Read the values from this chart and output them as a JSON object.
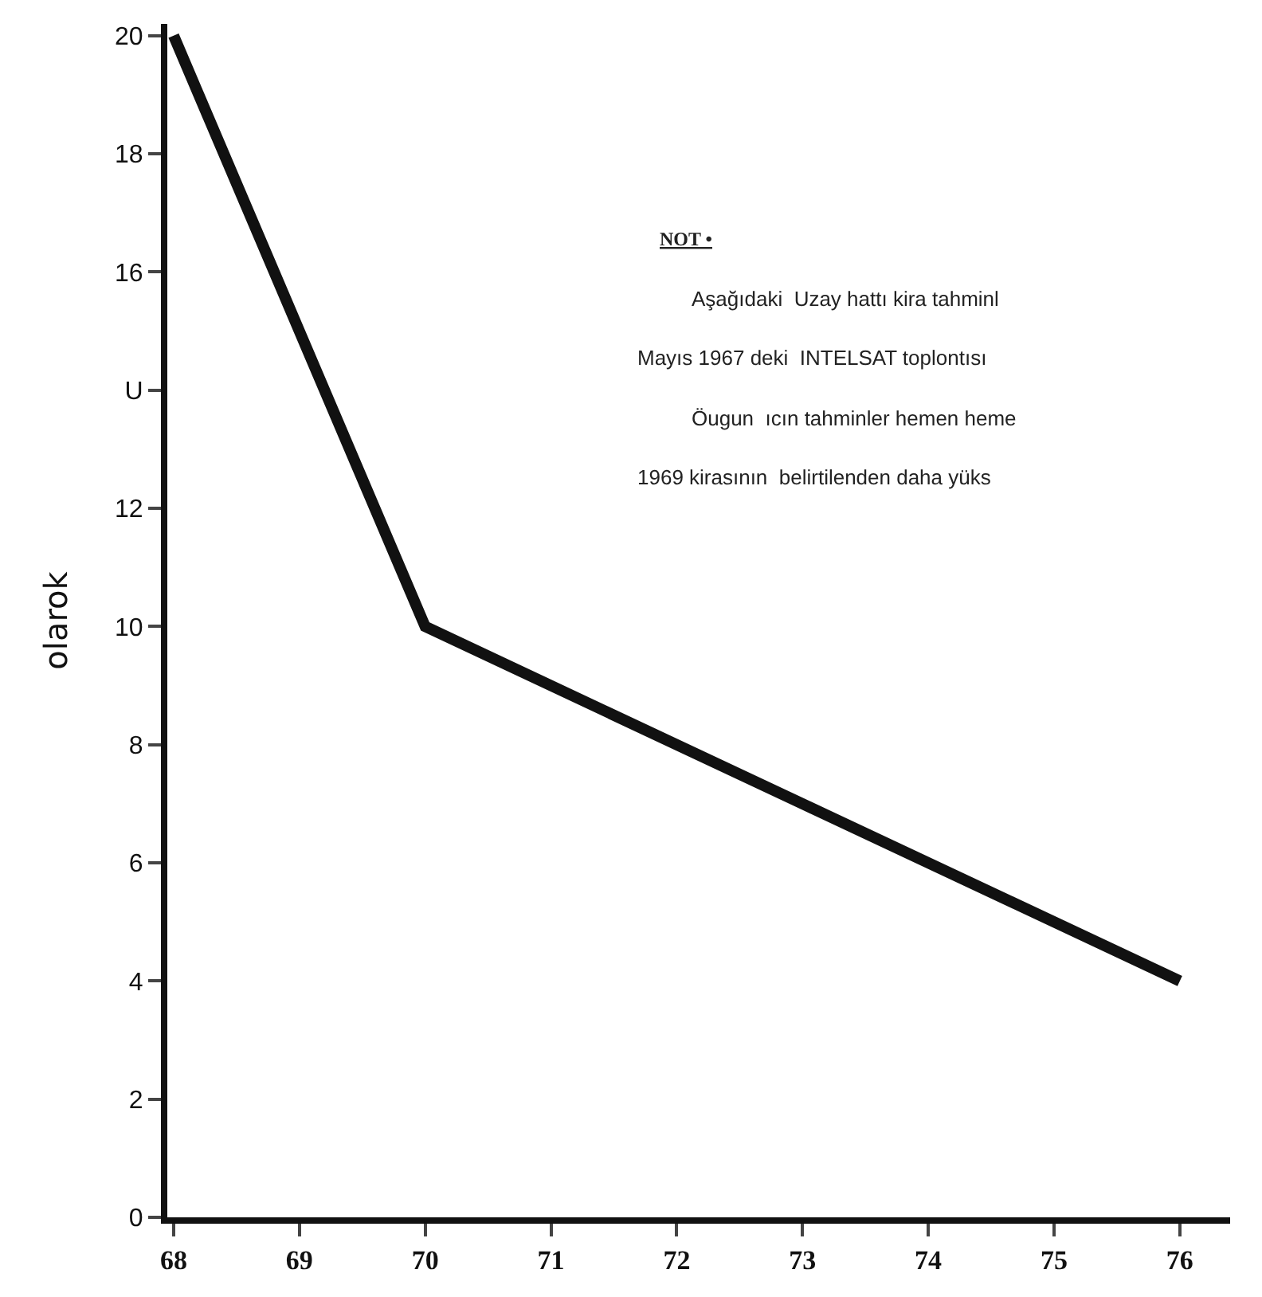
{
  "chart_data": {
    "type": "line",
    "x": [
      68,
      70,
      76
    ],
    "series": [
      {
        "color": "#111111",
        "values": [
          20,
          10,
          4
        ]
      }
    ],
    "xlim": [
      67.95,
      76.4
    ],
    "xticks": [
      68,
      69,
      70,
      71,
      72,
      73,
      74,
      75,
      76
    ],
    "ylim": [
      0,
      20.2
    ],
    "yticks": [
      0,
      2,
      4,
      6,
      8,
      10,
      12,
      {
        "value": 14,
        "label": "U"
      },
      16,
      18,
      20
    ],
    "ylabel": "olarok",
    "annotations": [
      "NOT •",
      "Aşağıdaki  Uzay hattı kira tahminl",
      "Mayıs 1967 deki  INTELSAT toplontısı",
      "Öugun  ıcın tahminler hemen heme",
      "1969 kirasının  belirtilenden daha yüks"
    ],
    "marker": "none",
    "line_style": "solid"
  }
}
